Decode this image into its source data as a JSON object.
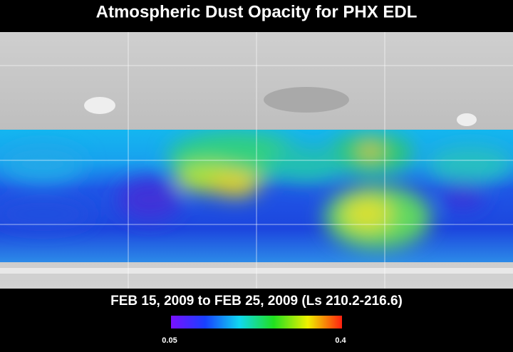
{
  "title": "Atmospheric Dust Opacity for PHX EDL",
  "date_range": "FEB 15, 2009 to FEB 25, 2009 (Ls 210.2-216.6)",
  "colorbar": {
    "ticks": [
      0.05,
      0.4
    ]
  }
}
